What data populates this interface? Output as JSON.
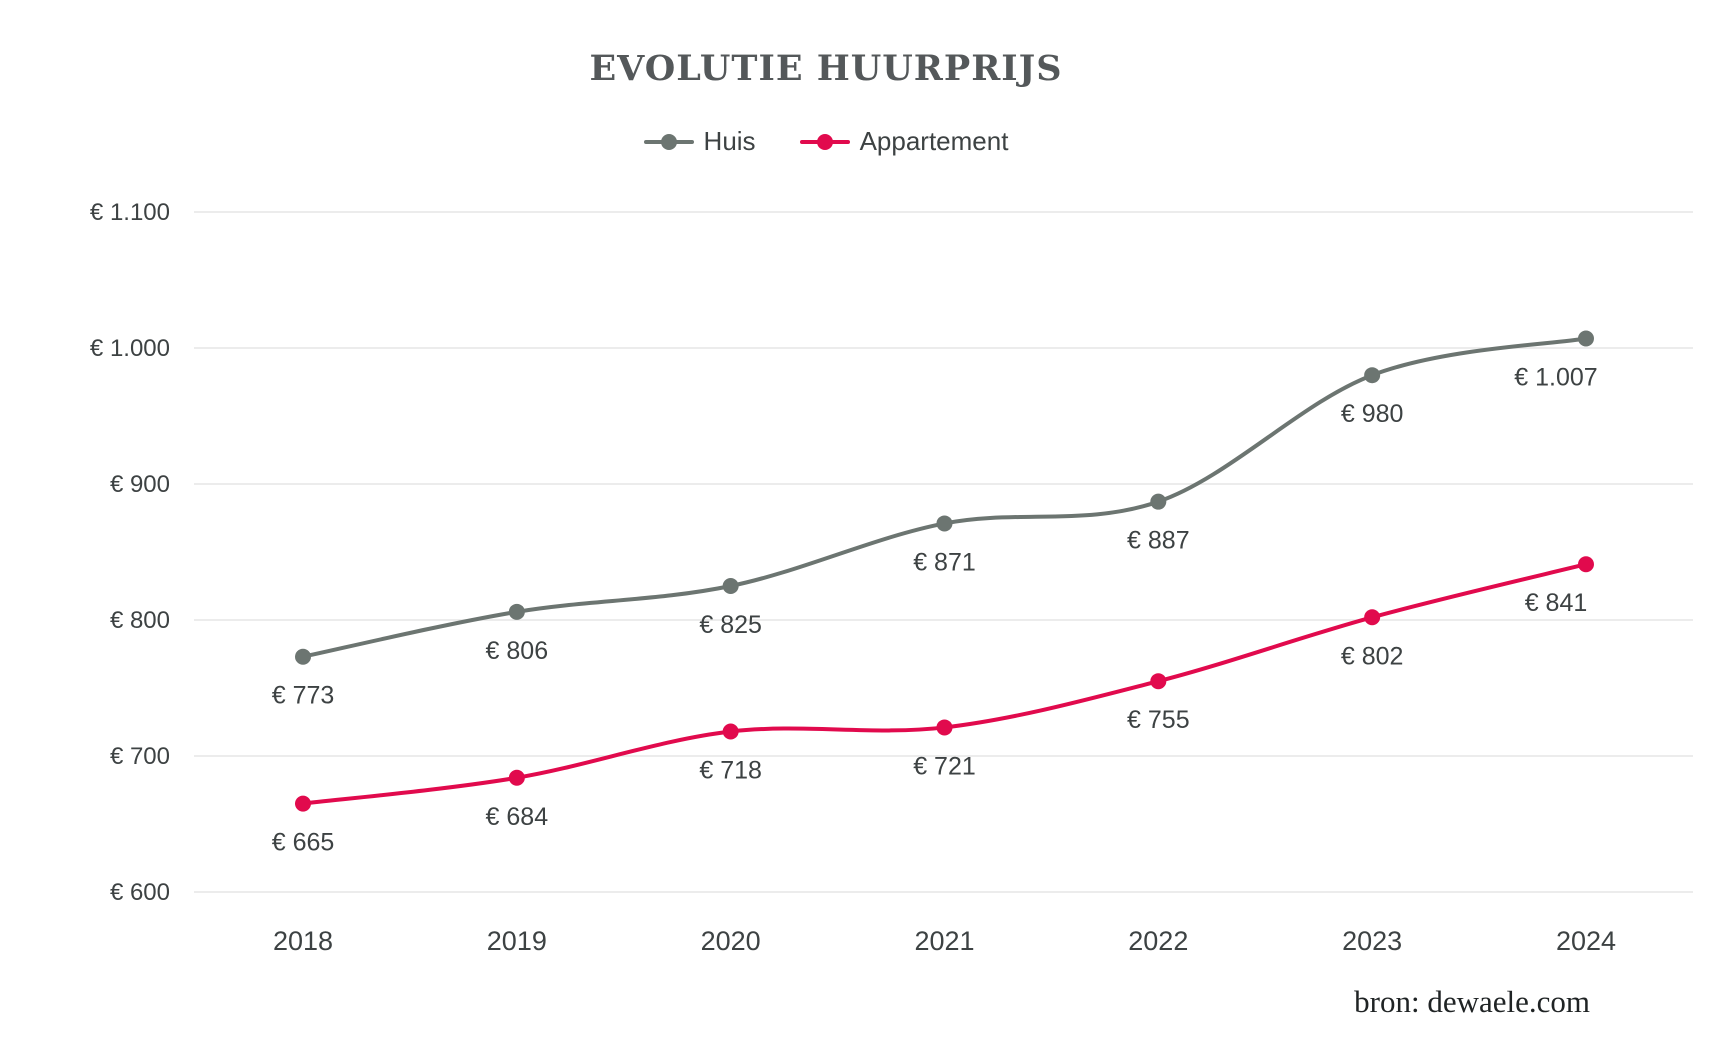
{
  "source": "bron: dewaele.com",
  "theme": {
    "text_color": "#3d4243",
    "grid_color": "#e6e6e6",
    "title_color": "#54585a",
    "source_color": "#1f2324",
    "background": "#ffffff"
  },
  "chart_data": {
    "type": "line",
    "title": "EVOLUTIE HUURPRIJS",
    "x_labels": [
      "2018",
      "2019",
      "2020",
      "2021",
      "2022",
      "2023",
      "2024"
    ],
    "series": [
      {
        "name": "Huis",
        "color": "#6c7571",
        "values": [
          773,
          806,
          825,
          871,
          887,
          980,
          1007
        ],
        "point_labels": [
          "€ 773",
          "€ 806",
          "€ 825",
          "€ 871",
          "€ 887",
          "€ 980",
          "€ 1.007"
        ]
      },
      {
        "name": "Appartement",
        "color": "#e10a4d",
        "values": [
          665,
          684,
          718,
          721,
          755,
          802,
          841
        ],
        "point_labels": [
          "€ 665",
          "€ 684",
          "€ 718",
          "€ 721",
          "€ 755",
          "€ 802",
          "€ 841"
        ]
      }
    ],
    "ylim": [
      600,
      1100
    ],
    "yticks": [
      600,
      700,
      800,
      900,
      1000,
      1100
    ],
    "ytick_labels": [
      "€ 600",
      "€ 700",
      "€ 800",
      "€ 900",
      "€ 1.000",
      "€ 1.100"
    ],
    "xlabel": "",
    "ylabel": "",
    "grid": true,
    "line_smoothing": true,
    "legend_position": "top"
  }
}
